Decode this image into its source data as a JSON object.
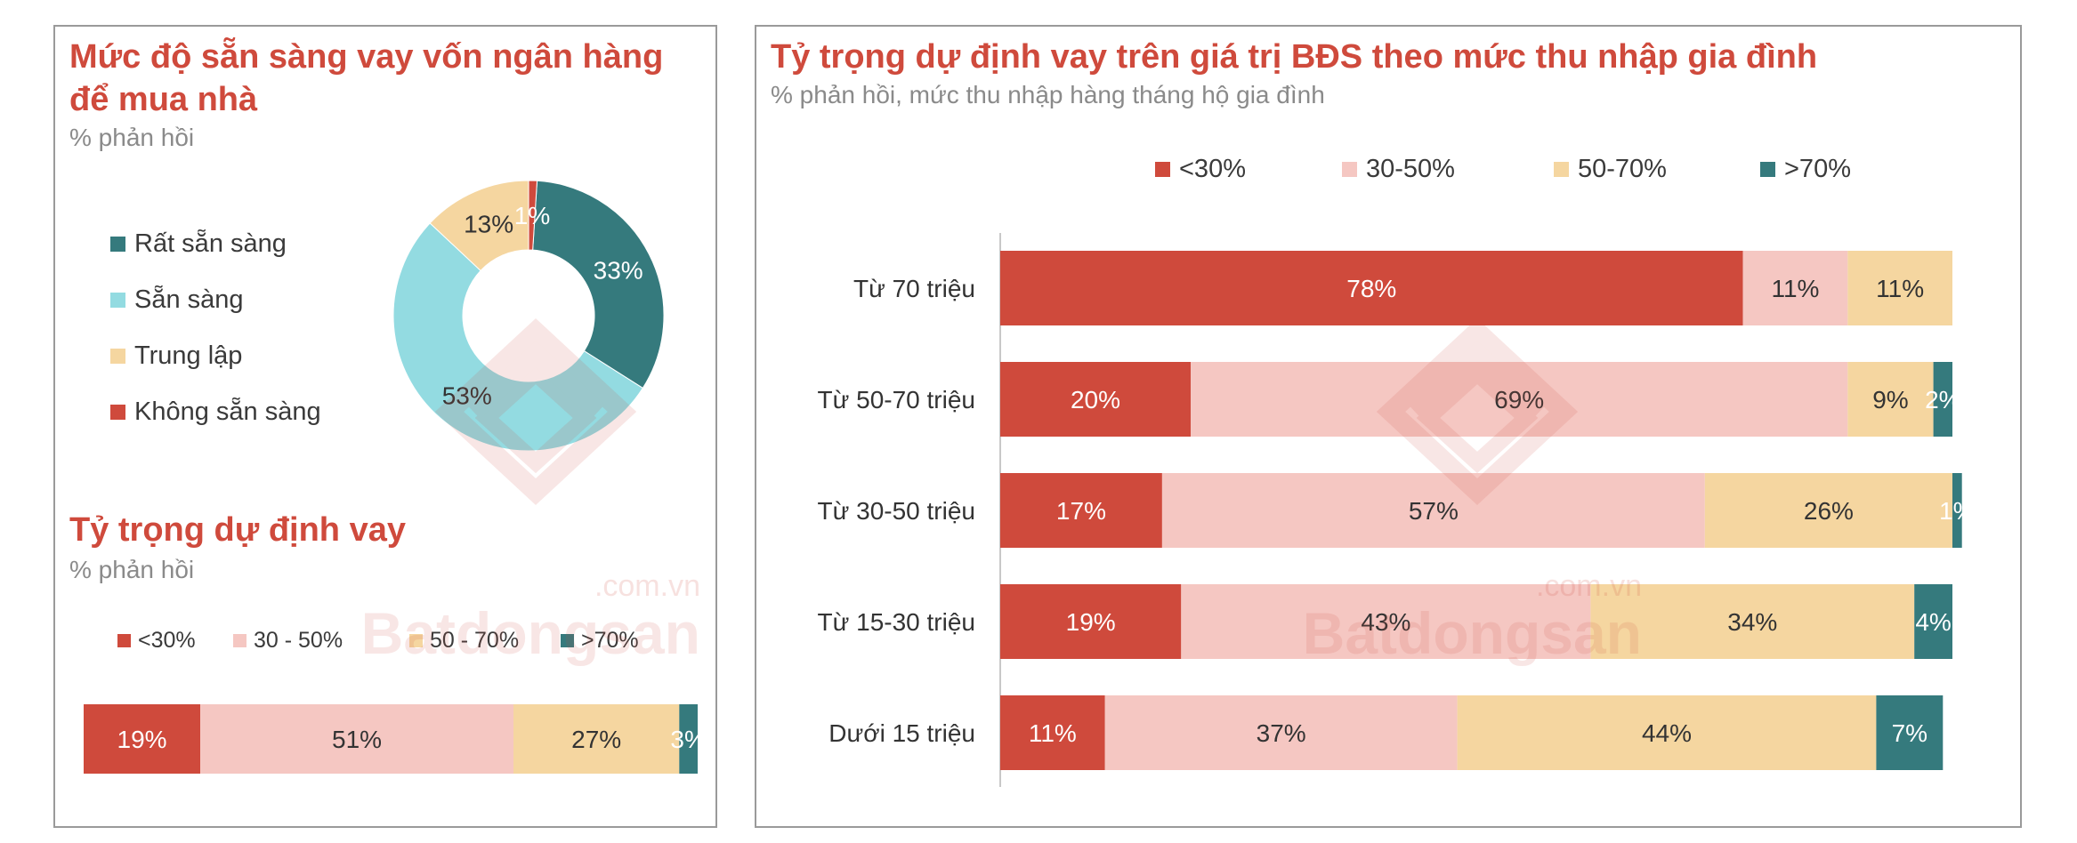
{
  "colors": {
    "lt30": "#cf4a3c",
    "r30_50": "#f5c7c2",
    "r50_70": "#f5d6a0",
    "gt70": "#357a7d",
    "san_sang": "#93dbe1",
    "title": "#cf4a3c"
  },
  "left": {
    "donut_title_line1": "Mức độ sẵn sàng vay vốn ngân hàng",
    "donut_title_line2": "để mua nhà",
    "donut_subtitle": "% phản hồi",
    "bar_title": "Tỷ trọng dự định vay",
    "bar_subtitle": "% phản hồi"
  },
  "right": {
    "title": "Tỷ trọng dự định vay trên giá trị BĐS theo mức thu nhập gia đình",
    "subtitle": "% phản hồi, mức thu nhập hàng tháng hộ gia đình"
  },
  "watermark": {
    "brand": "Batdongsan",
    "domain": ".com.vn"
  },
  "chart_data": [
    {
      "type": "pie",
      "title": "Mức độ sẵn sàng vay vốn ngân hàng để mua nhà",
      "subtitle": "% phản hồi",
      "donut": true,
      "categories": [
        "Rất sẵn sàng",
        "Sẵn sàng",
        "Trung lập",
        "Không sẵn sàng"
      ],
      "values": [
        33,
        53,
        13,
        1
      ],
      "labels": [
        "33%",
        "53%",
        "13%",
        "1%"
      ],
      "colors": [
        "#357a7d",
        "#93dbe1",
        "#f5d6a0",
        "#cf4a3c"
      ],
      "legend_position": "left"
    },
    {
      "type": "bar",
      "orientation": "horizontal",
      "stacked": true,
      "title": "Tỷ trọng dự định vay",
      "subtitle": "% phản hồi",
      "categories": [
        ""
      ],
      "series": [
        {
          "name": "<30%",
          "values": [
            19
          ],
          "labels": [
            "19%"
          ],
          "color": "#cf4a3c",
          "label_color": "#ffffff"
        },
        {
          "name": "30 - 50%",
          "values": [
            51
          ],
          "labels": [
            "51%"
          ],
          "color": "#f5c7c2",
          "label_color": "#333333"
        },
        {
          "name": "50 - 70%",
          "values": [
            27
          ],
          "labels": [
            "27%"
          ],
          "color": "#f5d6a0",
          "label_color": "#333333"
        },
        {
          "name": ">70%",
          "values": [
            3
          ],
          "labels": [
            "3%"
          ],
          "color": "#357a7d",
          "label_color": "#ffffff"
        }
      ],
      "xlim": [
        0,
        100
      ],
      "legend_position": "top"
    },
    {
      "type": "bar",
      "orientation": "horizontal",
      "stacked": true,
      "title": "Tỷ trọng dự định vay trên giá trị BĐS theo mức thu nhập gia đình",
      "subtitle": "% phản hồi, mức thu nhập hàng tháng hộ gia đình",
      "categories": [
        "Từ 70 triệu",
        "Từ 50-70 triệu",
        "Từ 30-50 triệu",
        "Từ 15-30 triệu",
        "Dưới 15 triệu"
      ],
      "series": [
        {
          "name": "<30%",
          "values": [
            78,
            20,
            17,
            19,
            11
          ],
          "labels": [
            "78%",
            "20%",
            "17%",
            "19%",
            "11%"
          ],
          "color": "#cf4a3c",
          "label_color": "#ffffff"
        },
        {
          "name": "30-50%",
          "values": [
            11,
            69,
            57,
            43,
            37
          ],
          "labels": [
            "11%",
            "69%",
            "57%",
            "43%",
            "37%"
          ],
          "color": "#f5c7c2",
          "label_color": "#333333"
        },
        {
          "name": "50-70%",
          "values": [
            11,
            9,
            26,
            34,
            44
          ],
          "labels": [
            "11%",
            "9%",
            "26%",
            "34%",
            "44%"
          ],
          "color": "#f5d6a0",
          "label_color": "#333333"
        },
        {
          "name": ">70%",
          "values": [
            0,
            2,
            1,
            4,
            7
          ],
          "labels": [
            "",
            "2%",
            "1%",
            "4%",
            "7%"
          ],
          "color": "#357a7d",
          "label_color": "#ffffff"
        }
      ],
      "xlim": [
        0,
        100
      ],
      "legend_position": "top"
    }
  ]
}
